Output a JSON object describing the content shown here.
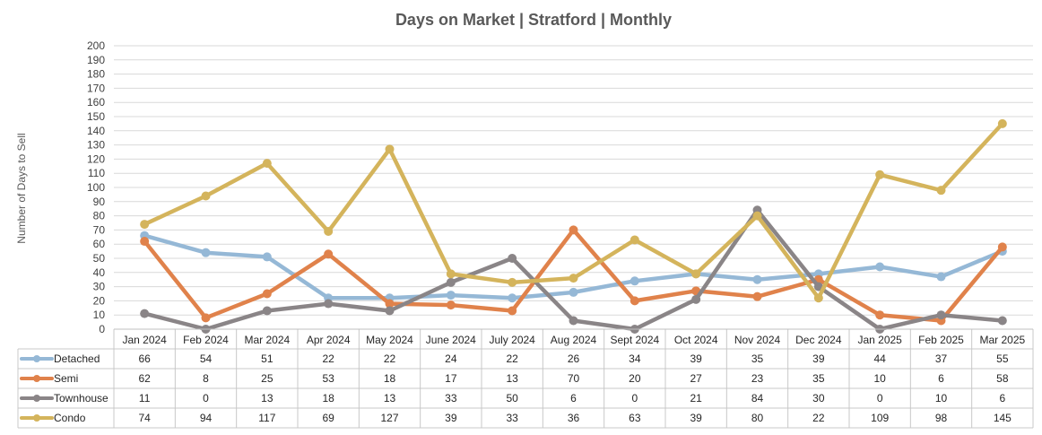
{
  "chart_data": {
    "type": "line",
    "title": "Days on Market | Stratford | Monthly",
    "ylabel": "Number of Days to Sell",
    "xlabel": "",
    "ylim": [
      0,
      200
    ],
    "ytick_step": 10,
    "grid": true,
    "legend_placement": "data-table-below",
    "categories": [
      "Jan 2024",
      "Feb 2024",
      "Mar 2024",
      "Apr 2024",
      "May 2024",
      "June 2024",
      "July 2024",
      "Aug 2024",
      "Sept 2024",
      "Oct 2024",
      "Nov 2024",
      "Dec 2024",
      "Jan 2025",
      "Feb 2025",
      "Mar 2025"
    ],
    "series": [
      {
        "name": "Detached",
        "color": "#95b8d6",
        "values": [
          66,
          54,
          51,
          22,
          22,
          24,
          22,
          26,
          34,
          39,
          35,
          39,
          44,
          37,
          55
        ]
      },
      {
        "name": "Semi",
        "color": "#e0824b",
        "values": [
          62,
          8,
          25,
          53,
          18,
          17,
          13,
          70,
          20,
          27,
          23,
          35,
          10,
          6,
          58
        ]
      },
      {
        "name": "Townhouse",
        "color": "#8a8587",
        "values": [
          11,
          0,
          13,
          18,
          13,
          33,
          50,
          6,
          0,
          21,
          84,
          30,
          0,
          10,
          6
        ]
      },
      {
        "name": "Condo",
        "color": "#d4b45c",
        "values": [
          74,
          94,
          117,
          69,
          127,
          39,
          33,
          36,
          63,
          39,
          80,
          22,
          109,
          98,
          145
        ]
      }
    ]
  }
}
